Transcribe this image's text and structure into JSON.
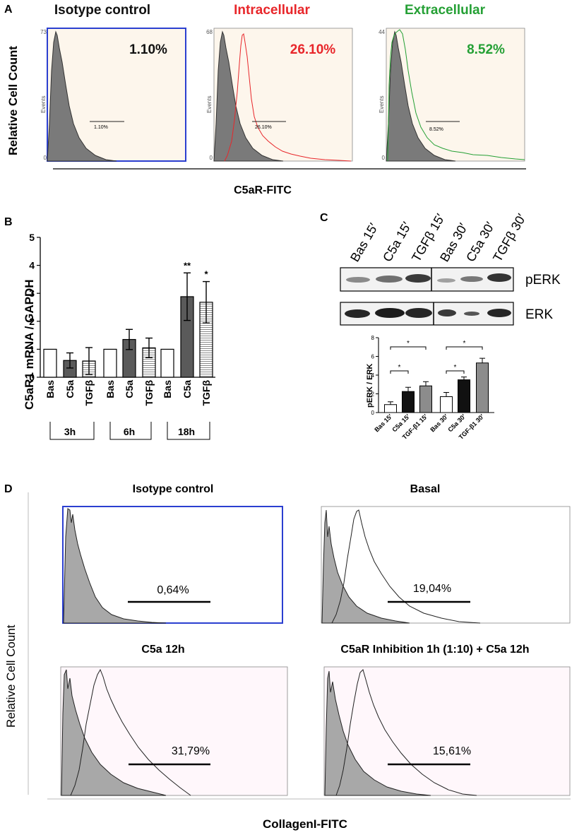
{
  "panel_letters": {
    "a": "A",
    "b": "B",
    "c": "C",
    "d": "D"
  },
  "panelA": {
    "ylabel": "Relative Cell Count",
    "xlabel": "C5aR-FITC",
    "axis_title": "Events",
    "hist_zero": "0",
    "plots": [
      {
        "title": "Isotype control",
        "title_color": "#111111",
        "pct": "1.10%",
        "pct_color": "#111111",
        "gate_label": "1.10%",
        "ymax": "73"
      },
      {
        "title": "Intracellular",
        "title_color": "#e8262a",
        "pct": "26.10%",
        "pct_color": "#e8262a",
        "gate_label": "26.10%",
        "ymax": "68"
      },
      {
        "title": "Extracellular",
        "title_color": "#25a035",
        "pct": "8.52%",
        "pct_color": "#25a035",
        "gate_label": "8.52%",
        "ymax": "44"
      }
    ]
  },
  "panelC": {
    "blot_lanes": [
      "Bas 15′",
      "C5a 15′",
      "TGFβ 15′",
      "Bas 30′",
      "C5a 30′",
      "TGFβ 30′"
    ],
    "blot_labels": {
      "perk": "pERK",
      "erk": "ERK"
    },
    "sig": "*"
  },
  "panelD": {
    "ylabel": "Relative Cell Count",
    "xlabel": "CollagenI-FITC",
    "plots": [
      {
        "title": "Isotype control",
        "pct": "0,64%"
      },
      {
        "title": "Basal",
        "pct": "19,04%"
      },
      {
        "title": "C5a 12h",
        "pct": "31,79%"
      },
      {
        "title": "C5aR Inhibition   1h (1:10) + C5a 12h",
        "pct": "15,61%"
      }
    ]
  },
  "chart_data": [
    {
      "type": "bar",
      "title": "",
      "ylabel": "C5aR1 mRNA / GAPDH",
      "xlabel": "",
      "ylim": [
        0,
        5
      ],
      "yticks": [
        "0",
        "1",
        "2",
        "3",
        "4",
        "5"
      ],
      "categories": [
        "Bas",
        "C5a",
        "TGFβ",
        "Bas",
        "C5a",
        "TGFβ",
        "Bas",
        "C5a",
        "TGFβ"
      ],
      "groups": [
        "3h",
        "6h",
        "18h"
      ],
      "values": [
        1.0,
        0.6,
        0.58,
        1.0,
        1.35,
        1.05,
        1.0,
        2.88,
        2.68
      ],
      "errors": [
        0,
        0.27,
        0.48,
        0,
        0.36,
        0.35,
        0,
        0.85,
        0.74
      ],
      "fills": [
        "white",
        "dark",
        "hatch",
        "white",
        "dark",
        "hatch",
        "white",
        "dark",
        "hatch"
      ],
      "significance": [
        "",
        "",
        "",
        "",
        "",
        "",
        "",
        "**",
        "*"
      ]
    },
    {
      "type": "bar",
      "title": "",
      "ylabel": "pERK / ERK",
      "xlabel": "",
      "ylim": [
        0,
        8
      ],
      "yticks": [
        "0",
        "2",
        "4",
        "6",
        "8"
      ],
      "categories": [
        "Bas 15′",
        "C5a 15′",
        "TGF-β1 15′",
        "Bas 30′",
        "C5a 30′",
        "TGF-β1 30′"
      ],
      "values": [
        0.85,
        2.25,
        2.85,
        1.7,
        3.5,
        5.3
      ],
      "errors": [
        0.3,
        0.45,
        0.45,
        0.45,
        0.3,
        0.5
      ],
      "fills": [
        "white",
        "black",
        "gray",
        "white",
        "black",
        "gray"
      ],
      "significance_brackets": [
        {
          "from": 0,
          "to": 1,
          "label": "*"
        },
        {
          "from": 0,
          "to": 2,
          "label": "*"
        },
        {
          "from": 3,
          "to": 4,
          "label": "*"
        },
        {
          "from": 3,
          "to": 5,
          "label": "*"
        }
      ]
    }
  ]
}
